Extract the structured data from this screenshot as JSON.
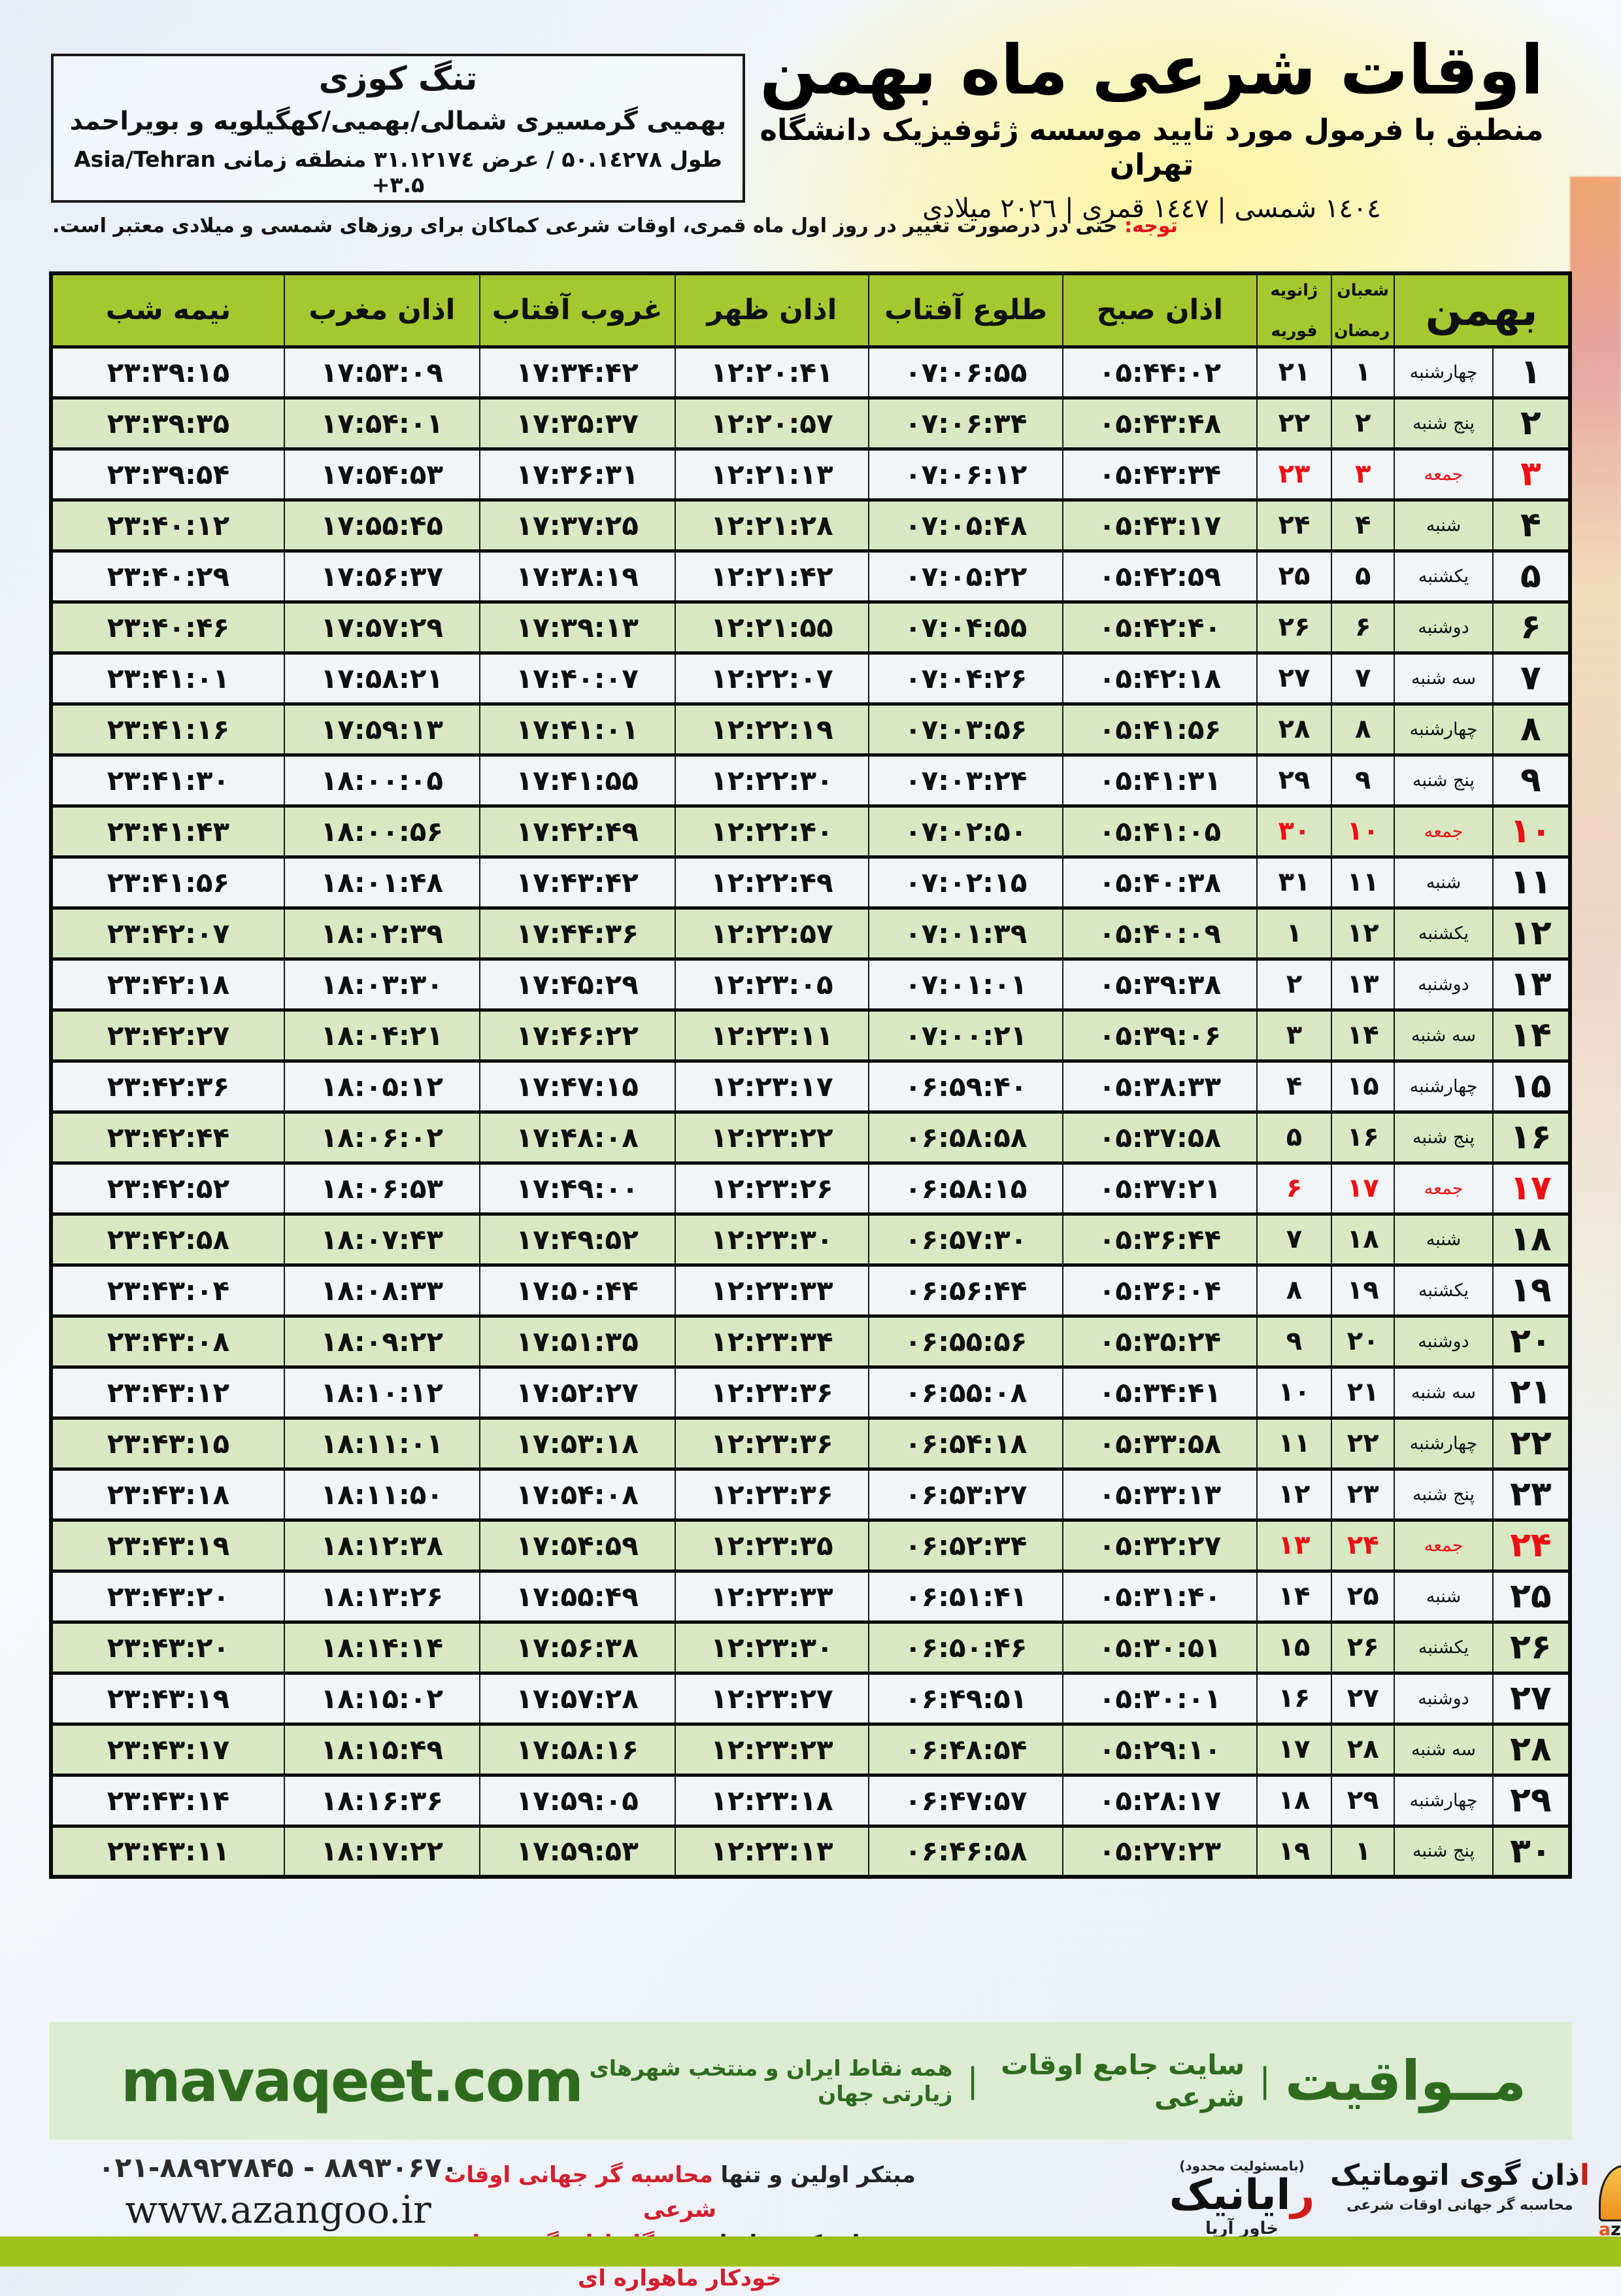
{
  "colors": {
    "header_green": "#a5c831",
    "row_green": "#d9e8c3",
    "row_white": "#f2f5f7",
    "friday_red": "#ee0f13",
    "banner_green_bg": "#dcecd2",
    "banner_green_text": "#2e6b1f",
    "bottom_bar": "#9fc016",
    "note_red": "#e8101c"
  },
  "header": {
    "title": "اوقات شرعی ماه بهمن",
    "subtitle": "منطبق با فرمول مورد تایید موسسه ژئوفیزیک دانشگاه تهران",
    "years": "۱٤۰٤ شمسی | ۱٤٤۷ قمری | ۲۰۲٦ میلادی"
  },
  "location": {
    "name": "تنگ کوزی",
    "region": "بهمیی گرمسیری شمالی/بهمیی/کهگیلویه و بویراحمد",
    "coords": "طول ۵۰.۱٤۲۷۸ / عرض ۳۱.۱۲۱۷٤ منطقه زمانی Asia/Tehran +۳.۵"
  },
  "note": {
    "label": "توجه:",
    "text": " حتی در درصورت تغییر در روز اول ماه قمری، اوقات شرعی کماکان برای روزهای شمسی و میلادی معتبر است."
  },
  "table": {
    "headers": {
      "month": "بهمن",
      "hijri_top": "شعبان",
      "hijri_bottom": "رمضان",
      "greg_top": "ژانویه",
      "greg_bottom": "فوریه",
      "fajr": "اذان صبح",
      "sunrise": "طلوع آفتاب",
      "dhuhr": "اذان ظهر",
      "sunset": "غروب آفتاب",
      "maghrib": "اذان مغرب",
      "midnight": "نیمه شب"
    },
    "rows": [
      {
        "d": "۱",
        "w": "چهارشنبه",
        "h": "۱",
        "g": "۲۱",
        "fajr": "۰۵:۴۴:۰۲",
        "sunrise": "۰۷:۰۶:۵۵",
        "dhuhr": "۱۲:۲۰:۴۱",
        "sunset": "۱۷:۳۴:۴۲",
        "maghrib": "۱۷:۵۳:۰۹",
        "midnight": "۲۳:۳۹:۱۵",
        "friday": false
      },
      {
        "d": "۲",
        "w": "پنج شنبه",
        "h": "۲",
        "g": "۲۲",
        "fajr": "۰۵:۴۳:۴۸",
        "sunrise": "۰۷:۰۶:۳۴",
        "dhuhr": "۱۲:۲۰:۵۷",
        "sunset": "۱۷:۳۵:۳۷",
        "maghrib": "۱۷:۵۴:۰۱",
        "midnight": "۲۳:۳۹:۳۵",
        "friday": false
      },
      {
        "d": "۳",
        "w": "جمعه",
        "h": "۳",
        "g": "۲۳",
        "fajr": "۰۵:۴۳:۳۴",
        "sunrise": "۰۷:۰۶:۱۲",
        "dhuhr": "۱۲:۲۱:۱۳",
        "sunset": "۱۷:۳۶:۳۱",
        "maghrib": "۱۷:۵۴:۵۳",
        "midnight": "۲۳:۳۹:۵۴",
        "friday": true
      },
      {
        "d": "۴",
        "w": "شنبه",
        "h": "۴",
        "g": "۲۴",
        "fajr": "۰۵:۴۳:۱۷",
        "sunrise": "۰۷:۰۵:۴۸",
        "dhuhr": "۱۲:۲۱:۲۸",
        "sunset": "۱۷:۳۷:۲۵",
        "maghrib": "۱۷:۵۵:۴۵",
        "midnight": "۲۳:۴۰:۱۲",
        "friday": false
      },
      {
        "d": "۵",
        "w": "یکشنبه",
        "h": "۵",
        "g": "۲۵",
        "fajr": "۰۵:۴۲:۵۹",
        "sunrise": "۰۷:۰۵:۲۲",
        "dhuhr": "۱۲:۲۱:۴۲",
        "sunset": "۱۷:۳۸:۱۹",
        "maghrib": "۱۷:۵۶:۳۷",
        "midnight": "۲۳:۴۰:۲۹",
        "friday": false
      },
      {
        "d": "۶",
        "w": "دوشنبه",
        "h": "۶",
        "g": "۲۶",
        "fajr": "۰۵:۴۲:۴۰",
        "sunrise": "۰۷:۰۴:۵۵",
        "dhuhr": "۱۲:۲۱:۵۵",
        "sunset": "۱۷:۳۹:۱۳",
        "maghrib": "۱۷:۵۷:۲۹",
        "midnight": "۲۳:۴۰:۴۶",
        "friday": false
      },
      {
        "d": "۷",
        "w": "سه شنبه",
        "h": "۷",
        "g": "۲۷",
        "fajr": "۰۵:۴۲:۱۸",
        "sunrise": "۰۷:۰۴:۲۶",
        "dhuhr": "۱۲:۲۲:۰۷",
        "sunset": "۱۷:۴۰:۰۷",
        "maghrib": "۱۷:۵۸:۲۱",
        "midnight": "۲۳:۴۱:۰۱",
        "friday": false
      },
      {
        "d": "۸",
        "w": "چهارشنبه",
        "h": "۸",
        "g": "۲۸",
        "fajr": "۰۵:۴۱:۵۶",
        "sunrise": "۰۷:۰۳:۵۶",
        "dhuhr": "۱۲:۲۲:۱۹",
        "sunset": "۱۷:۴۱:۰۱",
        "maghrib": "۱۷:۵۹:۱۳",
        "midnight": "۲۳:۴۱:۱۶",
        "friday": false
      },
      {
        "d": "۹",
        "w": "پنج شنبه",
        "h": "۹",
        "g": "۲۹",
        "fajr": "۰۵:۴۱:۳۱",
        "sunrise": "۰۷:۰۳:۲۴",
        "dhuhr": "۱۲:۲۲:۳۰",
        "sunset": "۱۷:۴۱:۵۵",
        "maghrib": "۱۸:۰۰:۰۵",
        "midnight": "۲۳:۴۱:۳۰",
        "friday": false
      },
      {
        "d": "۱۰",
        "w": "جمعه",
        "h": "۱۰",
        "g": "۳۰",
        "fajr": "۰۵:۴۱:۰۵",
        "sunrise": "۰۷:۰۲:۵۰",
        "dhuhr": "۱۲:۲۲:۴۰",
        "sunset": "۱۷:۴۲:۴۹",
        "maghrib": "۱۸:۰۰:۵۶",
        "midnight": "۲۳:۴۱:۴۳",
        "friday": true
      },
      {
        "d": "۱۱",
        "w": "شنبه",
        "h": "۱۱",
        "g": "۳۱",
        "fajr": "۰۵:۴۰:۳۸",
        "sunrise": "۰۷:۰۲:۱۵",
        "dhuhr": "۱۲:۲۲:۴۹",
        "sunset": "۱۷:۴۳:۴۲",
        "maghrib": "۱۸:۰۱:۴۸",
        "midnight": "۲۳:۴۱:۵۶",
        "friday": false
      },
      {
        "d": "۱۲",
        "w": "یکشنبه",
        "h": "۱۲",
        "g": "۱",
        "fajr": "۰۵:۴۰:۰۹",
        "sunrise": "۰۷:۰۱:۳۹",
        "dhuhr": "۱۲:۲۲:۵۷",
        "sunset": "۱۷:۴۴:۳۶",
        "maghrib": "۱۸:۰۲:۳۹",
        "midnight": "۲۳:۴۲:۰۷",
        "friday": false
      },
      {
        "d": "۱۳",
        "w": "دوشنبه",
        "h": "۱۳",
        "g": "۲",
        "fajr": "۰۵:۳۹:۳۸",
        "sunrise": "۰۷:۰۱:۰۱",
        "dhuhr": "۱۲:۲۳:۰۵",
        "sunset": "۱۷:۴۵:۲۹",
        "maghrib": "۱۸:۰۳:۳۰",
        "midnight": "۲۳:۴۲:۱۸",
        "friday": false
      },
      {
        "d": "۱۴",
        "w": "سه شنبه",
        "h": "۱۴",
        "g": "۳",
        "fajr": "۰۵:۳۹:۰۶",
        "sunrise": "۰۷:۰۰:۲۱",
        "dhuhr": "۱۲:۲۳:۱۱",
        "sunset": "۱۷:۴۶:۲۲",
        "maghrib": "۱۸:۰۴:۲۱",
        "midnight": "۲۳:۴۲:۲۷",
        "friday": false
      },
      {
        "d": "۱۵",
        "w": "چهارشنبه",
        "h": "۱۵",
        "g": "۴",
        "fajr": "۰۵:۳۸:۳۳",
        "sunrise": "۰۶:۵۹:۴۰",
        "dhuhr": "۱۲:۲۳:۱۷",
        "sunset": "۱۷:۴۷:۱۵",
        "maghrib": "۱۸:۰۵:۱۲",
        "midnight": "۲۳:۴۲:۳۶",
        "friday": false
      },
      {
        "d": "۱۶",
        "w": "پنج شنبه",
        "h": "۱۶",
        "g": "۵",
        "fajr": "۰۵:۳۷:۵۸",
        "sunrise": "۰۶:۵۸:۵۸",
        "dhuhr": "۱۲:۲۳:۲۲",
        "sunset": "۱۷:۴۸:۰۸",
        "maghrib": "۱۸:۰۶:۰۲",
        "midnight": "۲۳:۴۲:۴۴",
        "friday": false
      },
      {
        "d": "۱۷",
        "w": "جمعه",
        "h": "۱۷",
        "g": "۶",
        "fajr": "۰۵:۳۷:۲۱",
        "sunrise": "۰۶:۵۸:۱۵",
        "dhuhr": "۱۲:۲۳:۲۶",
        "sunset": "۱۷:۴۹:۰۰",
        "maghrib": "۱۸:۰۶:۵۳",
        "midnight": "۲۳:۴۲:۵۲",
        "friday": true
      },
      {
        "d": "۱۸",
        "w": "شنبه",
        "h": "۱۸",
        "g": "۷",
        "fajr": "۰۵:۳۶:۴۴",
        "sunrise": "۰۶:۵۷:۳۰",
        "dhuhr": "۱۲:۲۳:۳۰",
        "sunset": "۱۷:۴۹:۵۲",
        "maghrib": "۱۸:۰۷:۴۳",
        "midnight": "۲۳:۴۲:۵۸",
        "friday": false
      },
      {
        "d": "۱۹",
        "w": "یکشنبه",
        "h": "۱۹",
        "g": "۸",
        "fajr": "۰۵:۳۶:۰۴",
        "sunrise": "۰۶:۵۶:۴۴",
        "dhuhr": "۱۲:۲۳:۳۳",
        "sunset": "۱۷:۵۰:۴۴",
        "maghrib": "۱۸:۰۸:۳۳",
        "midnight": "۲۳:۴۳:۰۴",
        "friday": false
      },
      {
        "d": "۲۰",
        "w": "دوشنبه",
        "h": "۲۰",
        "g": "۹",
        "fajr": "۰۵:۳۵:۲۴",
        "sunrise": "۰۶:۵۵:۵۶",
        "dhuhr": "۱۲:۲۳:۳۴",
        "sunset": "۱۷:۵۱:۳۵",
        "maghrib": "۱۸:۰۹:۲۲",
        "midnight": "۲۳:۴۳:۰۸",
        "friday": false
      },
      {
        "d": "۲۱",
        "w": "سه شنبه",
        "h": "۲۱",
        "g": "۱۰",
        "fajr": "۰۵:۳۴:۴۱",
        "sunrise": "۰۶:۵۵:۰۸",
        "dhuhr": "۱۲:۲۳:۳۶",
        "sunset": "۱۷:۵۲:۲۷",
        "maghrib": "۱۸:۱۰:۱۲",
        "midnight": "۲۳:۴۳:۱۲",
        "friday": false
      },
      {
        "d": "۲۲",
        "w": "چهارشنبه",
        "h": "۲۲",
        "g": "۱۱",
        "fajr": "۰۵:۳۳:۵۸",
        "sunrise": "۰۶:۵۴:۱۸",
        "dhuhr": "۱۲:۲۳:۳۶",
        "sunset": "۱۷:۵۳:۱۸",
        "maghrib": "۱۸:۱۱:۰۱",
        "midnight": "۲۳:۴۳:۱۵",
        "friday": false
      },
      {
        "d": "۲۳",
        "w": "پنج شنبه",
        "h": "۲۳",
        "g": "۱۲",
        "fajr": "۰۵:۳۳:۱۳",
        "sunrise": "۰۶:۵۳:۲۷",
        "dhuhr": "۱۲:۲۳:۳۶",
        "sunset": "۱۷:۵۴:۰۸",
        "maghrib": "۱۸:۱۱:۵۰",
        "midnight": "۲۳:۴۳:۱۸",
        "friday": false
      },
      {
        "d": "۲۴",
        "w": "جمعه",
        "h": "۲۴",
        "g": "۱۳",
        "fajr": "۰۵:۳۲:۲۷",
        "sunrise": "۰۶:۵۲:۳۴",
        "dhuhr": "۱۲:۲۳:۳۵",
        "sunset": "۱۷:۵۴:۵۹",
        "maghrib": "۱۸:۱۲:۳۸",
        "midnight": "۲۳:۴۳:۱۹",
        "friday": true
      },
      {
        "d": "۲۵",
        "w": "شنبه",
        "h": "۲۵",
        "g": "۱۴",
        "fajr": "۰۵:۳۱:۴۰",
        "sunrise": "۰۶:۵۱:۴۱",
        "dhuhr": "۱۲:۲۳:۳۳",
        "sunset": "۱۷:۵۵:۴۹",
        "maghrib": "۱۸:۱۳:۲۶",
        "midnight": "۲۳:۴۳:۲۰",
        "friday": false
      },
      {
        "d": "۲۶",
        "w": "یکشنبه",
        "h": "۲۶",
        "g": "۱۵",
        "fajr": "۰۵:۳۰:۵۱",
        "sunrise": "۰۶:۵۰:۴۶",
        "dhuhr": "۱۲:۲۳:۳۰",
        "sunset": "۱۷:۵۶:۳۸",
        "maghrib": "۱۸:۱۴:۱۴",
        "midnight": "۲۳:۴۳:۲۰",
        "friday": false
      },
      {
        "d": "۲۷",
        "w": "دوشنبه",
        "h": "۲۷",
        "g": "۱۶",
        "fajr": "۰۵:۳۰:۰۱",
        "sunrise": "۰۶:۴۹:۵۱",
        "dhuhr": "۱۲:۲۳:۲۷",
        "sunset": "۱۷:۵۷:۲۸",
        "maghrib": "۱۸:۱۵:۰۲",
        "midnight": "۲۳:۴۳:۱۹",
        "friday": false
      },
      {
        "d": "۲۸",
        "w": "سه شنبه",
        "h": "۲۸",
        "g": "۱۷",
        "fajr": "۰۵:۲۹:۱۰",
        "sunrise": "۰۶:۴۸:۵۴",
        "dhuhr": "۱۲:۲۳:۲۳",
        "sunset": "۱۷:۵۸:۱۶",
        "maghrib": "۱۸:۱۵:۴۹",
        "midnight": "۲۳:۴۳:۱۷",
        "friday": false
      },
      {
        "d": "۲۹",
        "w": "چهارشنبه",
        "h": "۲۹",
        "g": "۱۸",
        "fajr": "۰۵:۲۸:۱۷",
        "sunrise": "۰۶:۴۷:۵۷",
        "dhuhr": "۱۲:۲۳:۱۸",
        "sunset": "۱۷:۵۹:۰۵",
        "maghrib": "۱۸:۱۶:۳۶",
        "midnight": "۲۳:۴۳:۱۴",
        "friday": false
      },
      {
        "d": "۳۰",
        "w": "پنج شنبه",
        "h": "۱",
        "g": "۱۹",
        "fajr": "۰۵:۲۷:۲۳",
        "sunrise": "۰۶:۴۶:۵۸",
        "dhuhr": "۱۲:۲۳:۱۳",
        "sunset": "۱۷:۵۹:۵۳",
        "maghrib": "۱۸:۱۷:۲۲",
        "midnight": "۲۳:۴۳:۱۱",
        "friday": false
      }
    ]
  },
  "banner": {
    "url": "mavaqeet.com",
    "title": "مــواقیت",
    "separator": "|",
    "subtitle": "سایت جامع اوقات شرعی",
    "tagline": "همه نقاط ایران و منتخب شهرهای زیارتی جهان"
  },
  "footer": {
    "phones": "۰۲۱-۸۸۹۲۷۸۴۵ - ۸۸۹۳۰۶۷۰",
    "website": "www.azangoo.ir",
    "line1_black": "مبتکر اولین و تنها ",
    "line1_red": "محاسبه گر جهانی اوقات شرعی",
    "line2_black": "و تولید کننده انواع ",
    "line2_red": "دستگاه اذان گوی تمام خودکار ماهواره ای",
    "rayanik_llc": "(بامسئولیت محدود)",
    "rayanik_r": "ر",
    "rayanik_rest": "ایانیک",
    "rayanik_sub": "خاور آریا",
    "azangoo_alef": "ا",
    "azangoo_title": "ذان گوی اتوماتیک",
    "azangoo_sub": "محاسبه گر جهانی اوقات شرعی",
    "azangoo_brand_a": "a",
    "azangoo_brand_rest": "zangoo"
  }
}
